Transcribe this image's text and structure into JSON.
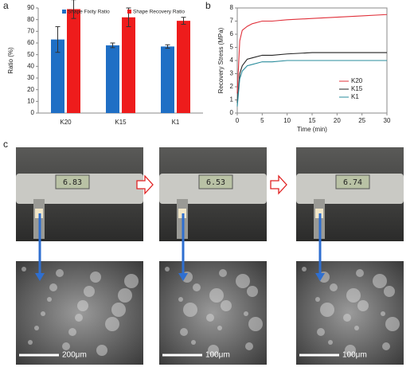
{
  "chart_data": [
    {
      "type": "bar",
      "label": "a",
      "ylabel": "Ratio (%)",
      "categories": [
        "K20",
        "K15",
        "K1"
      ],
      "series": [
        {
          "name": "Shape Fixity Ratio",
          "color": "#1f6fc5",
          "values": [
            63,
            58,
            57
          ],
          "errors": [
            11,
            2,
            1.5
          ]
        },
        {
          "name": "Shape Recovery Ratio",
          "color": "#ee1c1c",
          "values": [
            89,
            82,
            79
          ],
          "errors": [
            8,
            8,
            3
          ]
        }
      ],
      "ylim": [
        0,
        90
      ],
      "yticks": [
        0,
        10,
        20,
        30,
        40,
        50,
        60,
        70,
        80,
        90
      ]
    },
    {
      "type": "line",
      "label": "b",
      "xlabel": "Time (min)",
      "ylabel": "Recovery Stress (MPa)",
      "x": [
        0,
        0.5,
        1,
        2,
        3,
        5,
        7,
        10,
        15,
        20,
        25,
        30
      ],
      "series": [
        {
          "name": "K20",
          "color": "#e0303a",
          "values": [
            1.5,
            5.5,
            6.3,
            6.6,
            6.8,
            7.0,
            7.0,
            7.1,
            7.2,
            7.3,
            7.4,
            7.5
          ]
        },
        {
          "name": "K15",
          "color": "#222222",
          "values": [
            0.8,
            3.0,
            3.6,
            4.1,
            4.2,
            4.4,
            4.4,
            4.5,
            4.6,
            4.6,
            4.6,
            4.6
          ]
        },
        {
          "name": "K1",
          "color": "#2a8c9c",
          "values": [
            0.5,
            2.6,
            3.2,
            3.6,
            3.7,
            3.9,
            3.9,
            4.0,
            4.0,
            4.0,
            4.0,
            4.0
          ]
        }
      ],
      "xlim": [
        0,
        30
      ],
      "xticks": [
        0,
        5,
        10,
        15,
        20,
        25,
        30
      ],
      "ylim": [
        0,
        8
      ],
      "yticks": [
        0,
        1,
        2,
        3,
        4,
        5,
        6,
        7,
        8
      ]
    }
  ],
  "photos": {
    "label": "c",
    "readings": [
      "6.83",
      "6.53",
      "6.74"
    ],
    "scale_bars": [
      "200μm",
      "100μm",
      "100μm"
    ]
  }
}
